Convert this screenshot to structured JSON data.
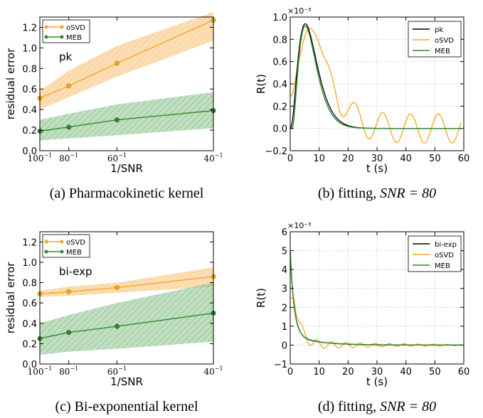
{
  "colors": {
    "osvd": "#f5a623",
    "meb": "#2e8b2e",
    "kernel": "#000000",
    "grid": "#b0b0b0",
    "osvd_band": "#f7c27a",
    "meb_band": "#8cc28c"
  },
  "chart_data": [
    {
      "type": "line",
      "panel": "a",
      "caption": "(a) Pharmacokinetic kernel",
      "annotation": "pk",
      "xlabel": "1/SNR",
      "ylabel": "residual error",
      "xticks": [
        {
          "base": "100",
          "exp": "−1",
          "x": 0.01
        },
        {
          "base": "80",
          "exp": "−1",
          "x": 0.0125
        },
        {
          "base": "60",
          "exp": "−1",
          "x": 0.016667
        },
        {
          "base": "40",
          "exp": "−1",
          "x": 0.025
        }
      ],
      "xlim": [
        0.01,
        0.025
      ],
      "ylim": [
        0.0,
        1.3
      ],
      "yticks": [
        "0.0",
        "0.2",
        "0.4",
        "0.6",
        "0.8",
        "1.0",
        "1.2"
      ],
      "legend_position": "top-left",
      "series": [
        {
          "name": "oSVD",
          "x": [
            0.01,
            0.0125,
            0.016667,
            0.025
          ],
          "values": [
            0.51,
            0.63,
            0.85,
            1.27
          ],
          "band_lower": [
            0.4,
            0.52,
            0.72,
            1.07
          ],
          "band_upper": [
            0.58,
            0.78,
            1.02,
            1.35
          ]
        },
        {
          "name": "MEB",
          "x": [
            0.01,
            0.0125,
            0.016667,
            0.025
          ],
          "values": [
            0.19,
            0.23,
            0.3,
            0.39
          ],
          "band_lower": [
            0.1,
            0.12,
            0.15,
            0.22
          ],
          "band_upper": [
            0.3,
            0.36,
            0.45,
            0.57
          ]
        }
      ]
    },
    {
      "type": "line",
      "panel": "b",
      "caption_prefix": "(b) fitting, ",
      "caption_math": "SNR = 80",
      "exponent_label": "×10⁻³",
      "xlabel": "t (s)",
      "ylabel": "R(t)",
      "xlim": [
        0,
        60
      ],
      "ylim": [
        -0.2,
        1.0
      ],
      "xticks": [
        "0",
        "10",
        "20",
        "30",
        "40",
        "50",
        "60"
      ],
      "yticks": [
        "−0.2",
        "0.0",
        "0.2",
        "0.4",
        "0.6",
        "0.8",
        "1.0"
      ],
      "grid": true,
      "legend_position": "top-right",
      "series": [
        {
          "name": "pk",
          "kind": "pk"
        },
        {
          "name": "oSVD",
          "kind": "pk_osc"
        },
        {
          "name": "MEB",
          "kind": "pk_fit"
        }
      ]
    },
    {
      "type": "line",
      "panel": "c",
      "caption": "(c) Bi-exponential kernel",
      "annotation": "bi-exp",
      "xlabel": "1/SNR",
      "ylabel": "residual error",
      "xticks": [
        {
          "base": "100",
          "exp": "−1",
          "x": 0.01
        },
        {
          "base": "80",
          "exp": "−1",
          "x": 0.0125
        },
        {
          "base": "60",
          "exp": "−1",
          "x": 0.016667
        },
        {
          "base": "40",
          "exp": "−1",
          "x": 0.025
        }
      ],
      "xlim": [
        0.01,
        0.025
      ],
      "ylim": [
        0.0,
        1.3
      ],
      "yticks": [
        "0.0",
        "0.2",
        "0.4",
        "0.6",
        "0.8",
        "1.0",
        "1.2"
      ],
      "legend_position": "top-left",
      "series": [
        {
          "name": "oSVD",
          "x": [
            0.01,
            0.0125,
            0.016667,
            0.025
          ],
          "values": [
            0.69,
            0.71,
            0.75,
            0.86
          ],
          "band_lower": [
            0.66,
            0.67,
            0.7,
            0.76
          ],
          "band_upper": [
            0.72,
            0.76,
            0.8,
            0.95
          ]
        },
        {
          "name": "MEB",
          "x": [
            0.01,
            0.0125,
            0.016667,
            0.025
          ],
          "values": [
            0.25,
            0.31,
            0.37,
            0.5
          ],
          "band_lower": [
            0.09,
            0.12,
            0.15,
            0.22
          ],
          "band_upper": [
            0.4,
            0.48,
            0.6,
            0.8
          ]
        }
      ]
    },
    {
      "type": "line",
      "panel": "d",
      "caption_prefix": "(d) fitting, ",
      "caption_math": "SNR = 80",
      "exponent_label": "×10⁻³",
      "xlabel": "t (s)",
      "ylabel": "R(t)",
      "xlim": [
        0,
        60
      ],
      "ylim": [
        -1,
        6
      ],
      "xticks": [
        "0",
        "10",
        "20",
        "30",
        "40",
        "50",
        "60"
      ],
      "yticks": [
        "−1",
        "0",
        "1",
        "2",
        "3",
        "4",
        "5",
        "6"
      ],
      "grid": true,
      "legend_position": "top-right",
      "series": [
        {
          "name": "bi-exp",
          "kind": "biexp"
        },
        {
          "name": "oSVD",
          "kind": "biexp_osc"
        },
        {
          "name": "MEB",
          "kind": "biexp_fit"
        }
      ]
    }
  ]
}
